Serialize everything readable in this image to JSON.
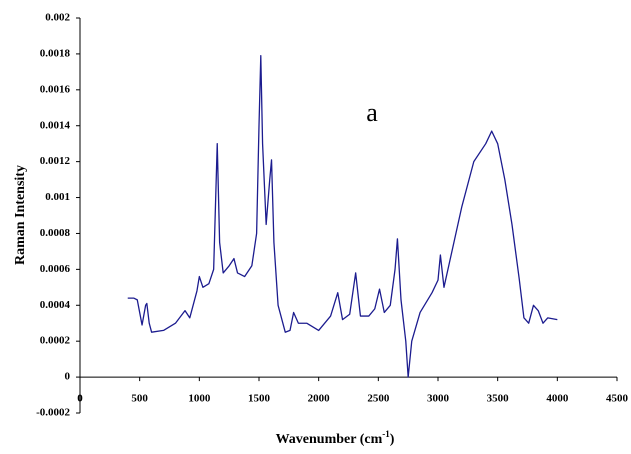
{
  "chart_data": {
    "type": "line",
    "annotation": "a",
    "x_label": [
      "Wavenumber (cm",
      "-1",
      ")"
    ],
    "y_label": "Raman Intensity",
    "xlim": [
      0,
      4500
    ],
    "xticks": [
      0,
      500,
      1000,
      1500,
      2000,
      2500,
      3000,
      3500,
      4000,
      4500
    ],
    "ylim": [
      -0.0002,
      0.002
    ],
    "yticks": [
      -0.0002,
      0,
      0.0002,
      0.0004,
      0.0006,
      0.0008,
      0.001,
      0.0012,
      0.0014,
      0.0016,
      0.0018,
      0.002
    ],
    "grid": false,
    "x": [
      400,
      450,
      480,
      520,
      550,
      560,
      580,
      600,
      700,
      800,
      880,
      920,
      980,
      1000,
      1030,
      1080,
      1120,
      1150,
      1170,
      1200,
      1250,
      1290,
      1320,
      1380,
      1440,
      1480,
      1500,
      1515,
      1530,
      1560,
      1590,
      1605,
      1625,
      1660,
      1720,
      1760,
      1790,
      1830,
      1900,
      2000,
      2100,
      2160,
      2200,
      2260,
      2310,
      2350,
      2420,
      2470,
      2510,
      2550,
      2600,
      2640,
      2660,
      2690,
      2730,
      2750,
      2780,
      2850,
      2950,
      3000,
      3020,
      3050,
      3100,
      3200,
      3300,
      3400,
      3450,
      3500,
      3560,
      3620,
      3680,
      3720,
      3760,
      3800,
      3840,
      3880,
      3920,
      4000
    ],
    "series": [
      {
        "color": "#1c1c8f",
        "values": [
          0.00044,
          0.00044,
          0.00043,
          0.00029,
          0.0004,
          0.00041,
          0.0003,
          0.00025,
          0.00026,
          0.0003,
          0.00037,
          0.00033,
          0.00048,
          0.00056,
          0.0005,
          0.00052,
          0.0006,
          0.0013,
          0.00075,
          0.00058,
          0.00062,
          0.00066,
          0.00058,
          0.00056,
          0.00062,
          0.0008,
          0.0014,
          0.00179,
          0.0013,
          0.00085,
          0.0011,
          0.00121,
          0.00075,
          0.0004,
          0.00025,
          0.00026,
          0.00036,
          0.0003,
          0.0003,
          0.00026,
          0.00034,
          0.00047,
          0.00032,
          0.00035,
          0.00058,
          0.00034,
          0.00034,
          0.00038,
          0.00049,
          0.00036,
          0.0004,
          0.0006,
          0.00077,
          0.00043,
          0.0002,
          0,
          0.0002,
          0.00036,
          0.00047,
          0.00054,
          0.00068,
          0.0005,
          0.00065,
          0.00095,
          0.0012,
          0.0013,
          0.00137,
          0.0013,
          0.0011,
          0.00085,
          0.00055,
          0.00033,
          0.0003,
          0.0004,
          0.00037,
          0.0003,
          0.00033,
          0.00032
        ]
      }
    ]
  }
}
